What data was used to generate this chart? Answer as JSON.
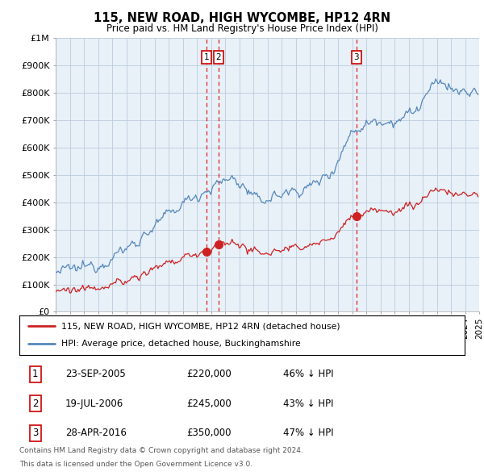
{
  "title": "115, NEW ROAD, HIGH WYCOMBE, HP12 4RN",
  "subtitle": "Price paid vs. HM Land Registry's House Price Index (HPI)",
  "hpi_color": "#5588bb",
  "price_color": "#cc2222",
  "vline_color": "#dd0000",
  "grid_color": "#bbccdd",
  "bg_chart": "#e8f0f8",
  "background_color": "#ffffff",
  "sale_prices": [
    220000,
    245000,
    350000
  ],
  "sale_labels": [
    "1",
    "2",
    "3"
  ],
  "legend_line1": "115, NEW ROAD, HIGH WYCOMBE, HP12 4RN (detached house)",
  "legend_line2": "HPI: Average price, detached house, Buckinghamshire",
  "table_data": [
    [
      "1",
      "23-SEP-2005",
      "£220,000",
      "46% ↓ HPI"
    ],
    [
      "2",
      "19-JUL-2006",
      "£245,000",
      "43% ↓ HPI"
    ],
    [
      "3",
      "28-APR-2016",
      "£350,000",
      "47% ↓ HPI"
    ]
  ],
  "footnote1": "Contains HM Land Registry data © Crown copyright and database right 2024.",
  "footnote2": "This data is licensed under the Open Government Licence v3.0.",
  "ylim": [
    0,
    1000000
  ],
  "yticks": [
    0,
    100000,
    200000,
    300000,
    400000,
    500000,
    600000,
    700000,
    800000,
    900000,
    1000000
  ],
  "ytick_labels": [
    "£0",
    "£100K",
    "£200K",
    "£300K",
    "£400K",
    "£500K",
    "£600K",
    "£700K",
    "£800K",
    "£900K",
    "£1M"
  ],
  "xstart_year": 1995,
  "xend_year": 2025,
  "sale_year_nums": [
    2005.708,
    2006.542,
    2016.292
  ]
}
